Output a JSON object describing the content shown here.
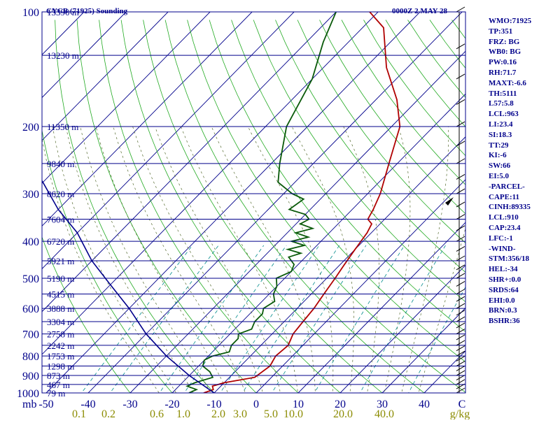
{
  "header": {
    "station": "CYCB (71925) Sounding",
    "time": "0000Z  2 MAY 28"
  },
  "indices": [
    "WMO:71925",
    "TP:351",
    "FRZ: BG",
    "WB0: BG",
    "PW:0.16",
    "RH:71.7",
    "MAXT:-6.6",
    "TH:5111",
    "L57:5.8",
    "LCL:963",
    "LI:23.4",
    "SI:18.3",
    "TT:29",
    "KI:-6",
    "SW:66",
    "EI:5.0",
    "-PARCEL-",
    "CAPE:11",
    "CINH:89335",
    "LCL:910",
    "CAP:23.4",
    "LFC:-1",
    "-WIND-",
    "STM:356/18",
    "HEL:-34",
    "SHR+:0.0",
    "SRDS:64",
    "EHI:0.0",
    "BRN:0.3",
    "BSHR:36"
  ],
  "colors": {
    "isobar": "#00008b",
    "isotherm": "#00008b",
    "dry_adiabat": "#008b8b",
    "moist_adiabat": "#22aa22",
    "mixing_ratio": "#556b2f",
    "temperature": "#b00000",
    "dewpoint": "#0a5a0a",
    "parcel": "#00008b"
  },
  "chart_data": {
    "type": "line",
    "title": "CYCB (71925) Sounding",
    "x_axis_unit": "C",
    "temperature_ticks": [
      "-50",
      "-40",
      "-30",
      "-20",
      "-10",
      "0",
      "10",
      "20",
      "30",
      "40",
      "C"
    ],
    "mixing_ratio_ticks": [
      "0.1",
      "0.2",
      "0.6",
      "1.0",
      "2.0",
      "3.0",
      "5.0",
      "10.0",
      "20.0",
      "40.0",
      "g/kg"
    ],
    "pressure_unit": "mb",
    "pressure_levels": [
      {
        "p": "100",
        "h": "15390 m"
      },
      {
        "p": "",
        "h": "13230 m"
      },
      {
        "p": "200",
        "h": "11350 m"
      },
      {
        "p": "",
        "h": "9840 m"
      },
      {
        "p": "300",
        "h": "8620 m"
      },
      {
        "p": "",
        "h": "7604 m"
      },
      {
        "p": "400",
        "h": "6720 m"
      },
      {
        "p": "",
        "h": "5921 m"
      },
      {
        "p": "500",
        "h": "5190 m"
      },
      {
        "p": "",
        "h": "4515 m"
      },
      {
        "p": "600",
        "h": "3888 m"
      },
      {
        "p": "",
        "h": "3304 m"
      },
      {
        "p": "700",
        "h": "2758 m"
      },
      {
        "p": "",
        "h": "2242 m"
      },
      {
        "p": "800",
        "h": "1753 m"
      },
      {
        "p": "",
        "h": "1298 m"
      },
      {
        "p": "900",
        "h": "873 m"
      },
      {
        "p": "",
        "h": "467 m"
      },
      {
        "p": "1000",
        "h": "79 m"
      }
    ],
    "series": [
      {
        "key": "temperature",
        "points": [
          [
            -12.5,
            1000
          ],
          [
            -11,
            980
          ],
          [
            -12,
            960
          ],
          [
            -10,
            940
          ],
          [
            -4,
            910
          ],
          [
            -3,
            850
          ],
          [
            -4,
            800
          ],
          [
            -3.5,
            750
          ],
          [
            -5,
            700
          ],
          [
            -5.5,
            650
          ],
          [
            -6,
            600
          ],
          [
            -7,
            550
          ],
          [
            -8,
            500
          ],
          [
            -9,
            460
          ],
          [
            -10,
            420
          ],
          [
            -11,
            380
          ],
          [
            -12,
            360
          ],
          [
            -14,
            350
          ],
          [
            -15,
            330
          ],
          [
            -17,
            300
          ],
          [
            -22,
            250
          ],
          [
            -28,
            200
          ],
          [
            -35,
            170
          ],
          [
            -45,
            140
          ],
          [
            -55,
            110
          ],
          [
            -62,
            100
          ]
        ]
      },
      {
        "key": "dewpoint",
        "points": [
          [
            -16,
            1000
          ],
          [
            -15,
            980
          ],
          [
            -18,
            960
          ],
          [
            -17,
            940
          ],
          [
            -14,
            910
          ],
          [
            -16,
            880
          ],
          [
            -19,
            850
          ],
          [
            -20,
            820
          ],
          [
            -19,
            800
          ],
          [
            -16,
            780
          ],
          [
            -17,
            750
          ],
          [
            -17,
            720
          ],
          [
            -18,
            700
          ],
          [
            -16,
            680
          ],
          [
            -17,
            650
          ],
          [
            -17,
            620
          ],
          [
            -18,
            600
          ],
          [
            -17,
            575
          ],
          [
            -19,
            550
          ],
          [
            -20,
            525
          ],
          [
            -22,
            500
          ],
          [
            -20,
            480
          ],
          [
            -21,
            460
          ],
          [
            -24,
            440
          ],
          [
            -22,
            430
          ],
          [
            -26,
            420
          ],
          [
            -23,
            410
          ],
          [
            -27,
            400
          ],
          [
            -24,
            390
          ],
          [
            -28,
            380
          ],
          [
            -25,
            370
          ],
          [
            -29,
            360
          ],
          [
            -28,
            350
          ],
          [
            -30,
            340
          ],
          [
            -35,
            330
          ],
          [
            -34,
            310
          ],
          [
            -38,
            300
          ],
          [
            -44,
            280
          ],
          [
            -48,
            250
          ],
          [
            -55,
            200
          ],
          [
            -60,
            150
          ],
          [
            -66,
            120
          ],
          [
            -70,
            100
          ]
        ]
      },
      {
        "key": "parcel",
        "points": [
          [
            -10,
            1000
          ],
          [
            -20,
            900
          ],
          [
            -30,
            800
          ],
          [
            -40,
            700
          ],
          [
            -50,
            600
          ],
          [
            -60,
            520
          ],
          [
            -70,
            450
          ],
          [
            -80,
            380
          ],
          [
            -90,
            330
          ],
          [
            -100,
            280
          ],
          [
            -110,
            240
          ],
          [
            -120,
            200
          ],
          [
            -130,
            170
          ],
          [
            -140,
            140
          ],
          [
            -150,
            115
          ],
          [
            -158,
            100
          ]
        ]
      }
    ]
  }
}
